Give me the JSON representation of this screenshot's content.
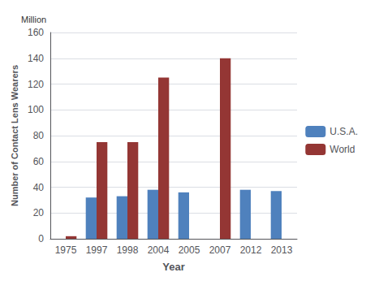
{
  "chart_data": {
    "type": "bar",
    "categories": [
      "1975",
      "1997",
      "1998",
      "2004",
      "2005",
      "2007",
      "2012",
      "2013"
    ],
    "series": [
      {
        "name": "U.S.A.",
        "color": "#4F81BD",
        "values": [
          null,
          32,
          33,
          38,
          36,
          null,
          38,
          37
        ]
      },
      {
        "name": "World",
        "color": "#943634",
        "values": [
          2,
          75,
          75,
          125,
          null,
          140,
          null,
          null
        ]
      }
    ],
    "xlabel": "Year",
    "ylabel": "Number of Contact Lens Wearers",
    "annotation": "Million",
    "ylim": [
      0,
      160
    ],
    "yticks": [
      0,
      20,
      40,
      60,
      80,
      100,
      120,
      140,
      160
    ],
    "grid": true,
    "legend": "right"
  }
}
